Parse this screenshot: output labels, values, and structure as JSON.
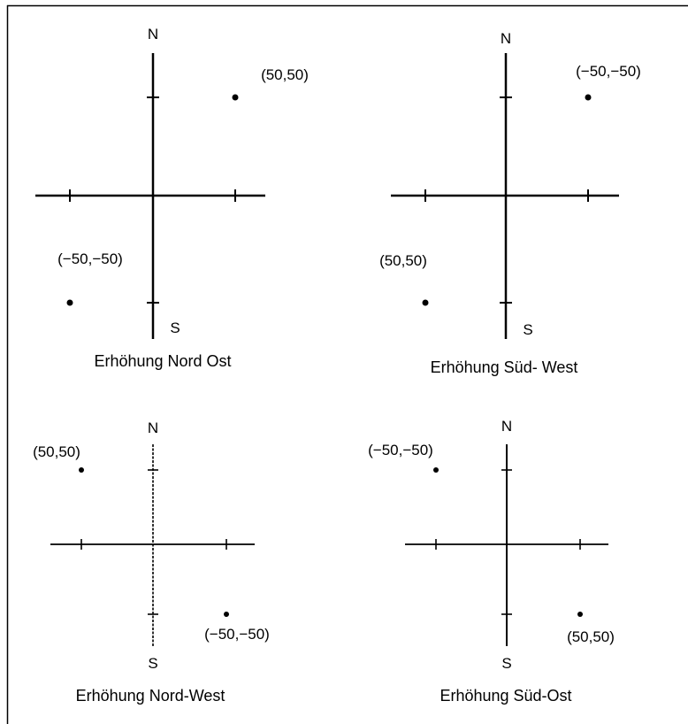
{
  "diagrams": [
    {
      "north_label": "N",
      "south_label": "S",
      "caption": "Erhöhung Nord Ost",
      "points": [
        {
          "label": "(50,50)"
        },
        {
          "label": "(−50,−50)"
        }
      ]
    },
    {
      "north_label": "N",
      "south_label": "S",
      "caption": "Erhöhung Süd- West",
      "points": [
        {
          "label": "(−50,−50)"
        },
        {
          "label": "(50,50)"
        }
      ]
    },
    {
      "north_label": "N",
      "south_label": "S",
      "caption": "Erhöhung Nord-West",
      "points": [
        {
          "label": "(50,50)"
        },
        {
          "label": "(−50,−50)"
        }
      ]
    },
    {
      "north_label": "N",
      "south_label": "S",
      "caption": "Erhöhung Süd-Ost",
      "points": [
        {
          "label": "(−50,−50)"
        },
        {
          "label": "(50,50)"
        }
      ]
    }
  ],
  "colors": {
    "ink": "#000000",
    "frame": "#000000",
    "background": "#ffffff"
  }
}
